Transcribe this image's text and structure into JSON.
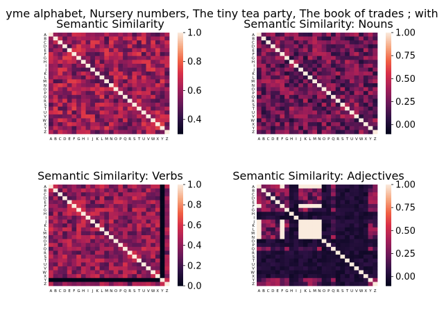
{
  "suptitle": "yme alphabet, Nursery numbers, The tiny tea party, The book of trades ; with",
  "chart_data": [
    {
      "type": "heatmap",
      "title": "Semantic Similarity",
      "labels": [
        "A",
        "B",
        "C",
        "D",
        "E",
        "F",
        "G",
        "H",
        "I",
        "J",
        "K",
        "L",
        "M",
        "N",
        "O",
        "P",
        "Q",
        "R",
        "S",
        "T",
        "U",
        "V",
        "W",
        "X",
        "Y",
        "Z"
      ],
      "vmin": 0.3,
      "vmax": 1.0,
      "colorbar_ticks": [
        0.4,
        0.6,
        0.8,
        1.0
      ],
      "colorbar_labels": [
        "0.4",
        "0.6",
        "0.8",
        "1.0"
      ],
      "approx_offdiag_mean": 0.58
    },
    {
      "type": "heatmap",
      "title": "Semantic Similarity: Nouns",
      "labels": [
        "A",
        "B",
        "C",
        "D",
        "E",
        "F",
        "G",
        "H",
        "I",
        "J",
        "K",
        "L",
        "M",
        "N",
        "O",
        "P",
        "Q",
        "R",
        "S",
        "T",
        "U",
        "V",
        "W",
        "X",
        "Y",
        "Z"
      ],
      "vmin": -0.1,
      "vmax": 1.0,
      "colorbar_ticks": [
        0.0,
        0.25,
        0.5,
        0.75,
        1.0
      ],
      "colorbar_labels": [
        "0.00",
        "0.25",
        "0.50",
        "0.75",
        "1.00"
      ],
      "approx_offdiag_mean": 0.22
    },
    {
      "type": "heatmap",
      "title": "Semantic Similarity: Verbs",
      "labels": [
        "A",
        "B",
        "C",
        "D",
        "E",
        "F",
        "G",
        "H",
        "I",
        "J",
        "K",
        "L",
        "M",
        "N",
        "O",
        "P",
        "Q",
        "R",
        "S",
        "T",
        "U",
        "V",
        "W",
        "X",
        "Y",
        "Z"
      ],
      "vmin": 0.0,
      "vmax": 1.0,
      "colorbar_ticks": [
        0.0,
        0.2,
        0.4,
        0.6,
        0.8,
        1.0
      ],
      "colorbar_labels": [
        "0.0",
        "0.2",
        "0.4",
        "0.6",
        "0.8",
        "1.0"
      ],
      "approx_offdiag_mean": 0.42,
      "near_zero_rows": [
        "Y"
      ],
      "near_zero_cols": [
        "Y"
      ]
    },
    {
      "type": "heatmap",
      "title": "Semantic Similarity: Adjectives",
      "labels": [
        "A",
        "B",
        "C",
        "D",
        "E",
        "F",
        "G",
        "H",
        "I",
        "J",
        "K",
        "L",
        "M",
        "N",
        "O",
        "P",
        "Q",
        "R",
        "S",
        "T",
        "U",
        "V",
        "W",
        "X",
        "Y",
        "Z"
      ],
      "vmin": -0.1,
      "vmax": 1.0,
      "colorbar_ticks": [
        0.0,
        0.25,
        0.5,
        0.75,
        1.0
      ],
      "colorbar_labels": [
        "0.00",
        "0.25",
        "0.50",
        "0.75",
        "1.00"
      ],
      "approx_offdiag_mean": 0.1,
      "high_block_letters": [
        "A",
        "F",
        "J",
        "K",
        "L",
        "M",
        "N"
      ],
      "low_block_letters": [
        "H",
        "I",
        "O",
        "P",
        "R",
        "S",
        "T",
        "U",
        "V",
        "W",
        "X"
      ]
    }
  ]
}
